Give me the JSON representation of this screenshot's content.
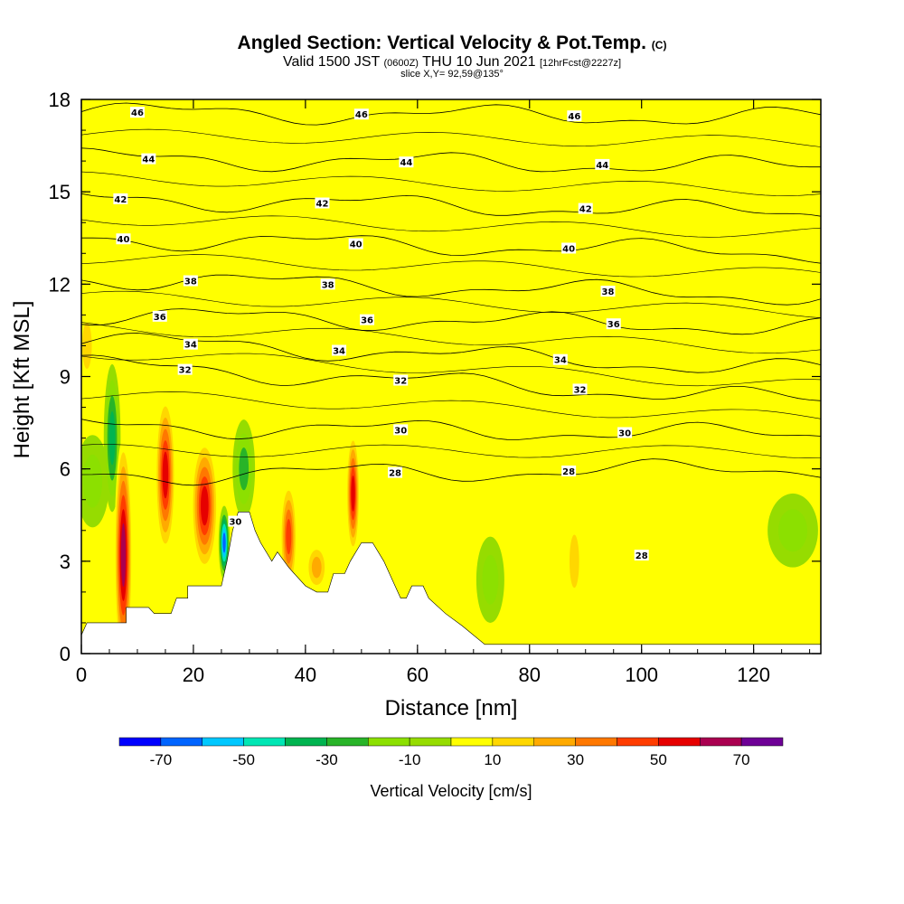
{
  "header": {
    "title_main": "Angled Section: Vertical Velocity & Pot.Temp.",
    "title_tag": "(C)",
    "valid_prefix": "Valid 1500 JST",
    "valid_z": "(0600Z)",
    "valid_date": "THU 10 Jun 2021",
    "valid_fcst": "[12hrFcst@2227z]",
    "slice": "slice X,Y= 92,59@135°"
  },
  "chart_data": {
    "type": "heatmap",
    "xlabel": "Distance [nm]",
    "ylabel": "Height [Kft MSL]",
    "xlim": [
      0,
      132
    ],
    "ylim": [
      0,
      18
    ],
    "xticks": [
      0,
      20,
      40,
      60,
      80,
      100,
      120
    ],
    "yticks": [
      0,
      3,
      6,
      9,
      12,
      15,
      18
    ],
    "colorbar": {
      "title": "Vertical Velocity [cm/s]",
      "tick_values": [
        -70,
        -50,
        -30,
        -10,
        10,
        30,
        50,
        70
      ],
      "levels": [
        -80,
        -70,
        -60,
        -50,
        -40,
        -30,
        -20,
        -10,
        0,
        10,
        20,
        30,
        40,
        50,
        60,
        70,
        80
      ],
      "colors": [
        "#0000ff",
        "#0064ff",
        "#00c8ff",
        "#00e6b4",
        "#00b450",
        "#28b428",
        "#8ce000",
        "#96dc00",
        "#ffff00",
        "#ffd700",
        "#ffaa00",
        "#ff7800",
        "#ff3c00",
        "#e60000",
        "#aa0050",
        "#6e0096"
      ]
    },
    "background_velocity": 0,
    "velocity_cells": [
      {
        "x": 7.5,
        "x_half_width": 1.6,
        "y": 3.2,
        "y_half_height": 3.8,
        "value": 70
      },
      {
        "x": 15,
        "x_half_width": 1.8,
        "y": 5.8,
        "y_half_height": 2.6,
        "value": 60
      },
      {
        "x": 22,
        "x_half_width": 2.4,
        "y": 4.8,
        "y_half_height": 2.2,
        "value": 60
      },
      {
        "x": 37,
        "x_half_width": 1.5,
        "y": 3.8,
        "y_half_height": 1.8,
        "value": 50
      },
      {
        "x": 48.5,
        "x_half_width": 1.2,
        "y": 5.2,
        "y_half_height": 2.0,
        "value": 60
      },
      {
        "x": 25.5,
        "x_half_width": 1.0,
        "y": 3.6,
        "y_half_height": 1.2,
        "value": -70
      },
      {
        "x": 29,
        "x_half_width": 2.0,
        "y": 6.0,
        "y_half_height": 1.6,
        "value": -30
      },
      {
        "x": 5.5,
        "x_half_width": 1.5,
        "y": 7.0,
        "y_half_height": 2.4,
        "value": -40
      },
      {
        "x": 2,
        "x_half_width": 3.0,
        "y": 5.6,
        "y_half_height": 1.5,
        "value": -20
      },
      {
        "x": 73,
        "x_half_width": 2.5,
        "y": 2.4,
        "y_half_height": 1.4,
        "value": -20
      },
      {
        "x": 127,
        "x_half_width": 4.5,
        "y": 4.0,
        "y_half_height": 1.2,
        "value": -20
      },
      {
        "x": 1,
        "x_half_width": 1.5,
        "y": 10.0,
        "y_half_height": 1.3,
        "value": 20
      },
      {
        "x": 5,
        "x_half_width": 3.5,
        "y": 14.5,
        "y_half_height": 2.2,
        "value": 10
      },
      {
        "x": 20,
        "x_half_width": 3.0,
        "y": 13.5,
        "y_half_height": 1.8,
        "value": 10
      },
      {
        "x": 29,
        "x_half_width": 2.0,
        "y": 15.5,
        "y_half_height": 2.5,
        "value": 10
      },
      {
        "x": 48,
        "x_half_width": 9.0,
        "y": 11.5,
        "y_half_height": 2.0,
        "value": 10
      },
      {
        "x": 66,
        "x_half_width": 4.0,
        "y": 9.5,
        "y_half_height": 1.5,
        "value": 10
      },
      {
        "x": 79,
        "x_half_width": 5.0,
        "y": 11.0,
        "y_half_height": 3.5,
        "value": 10
      },
      {
        "x": 86,
        "x_half_width": 2.5,
        "y": 16.5,
        "y_half_height": 1.5,
        "value": 10
      },
      {
        "x": 96,
        "x_half_width": 4.0,
        "y": 9.5,
        "y_half_height": 2.5,
        "value": 10
      },
      {
        "x": 107,
        "x_half_width": 3.0,
        "y": 15.0,
        "y_half_height": 3.0,
        "value": 10
      },
      {
        "x": 120,
        "x_half_width": 2.5,
        "y": 10.5,
        "y_half_height": 2.5,
        "value": 10
      },
      {
        "x": 128,
        "x_half_width": 3.0,
        "y": 9.5,
        "y_half_height": 2.0,
        "value": 10
      },
      {
        "x": 88,
        "x_half_width": 1.5,
        "y": 3.0,
        "y_half_height": 1.5,
        "value": 20
      },
      {
        "x": 97,
        "x_half_width": 1.5,
        "y": 2.6,
        "y_half_height": 1.4,
        "value": 15
      },
      {
        "x": 117,
        "x_half_width": 2.5,
        "y": 2.5,
        "y_half_height": 1.6,
        "value": 15
      },
      {
        "x": 57,
        "x_half_width": 2.0,
        "y": 3.5,
        "y_half_height": 1.0,
        "value": 10
      },
      {
        "x": 42,
        "x_half_width": 2.0,
        "y": 2.8,
        "y_half_height": 0.8,
        "value": 30
      }
    ],
    "terrain": [
      {
        "x": 0,
        "h": 0.6
      },
      {
        "x": 1,
        "h": 1.0
      },
      {
        "x": 8,
        "h": 1.0
      },
      {
        "x": 8,
        "h": 1.5
      },
      {
        "x": 12,
        "h": 1.5
      },
      {
        "x": 13,
        "h": 1.3
      },
      {
        "x": 16,
        "h": 1.3
      },
      {
        "x": 17,
        "h": 1.8
      },
      {
        "x": 19,
        "h": 1.8
      },
      {
        "x": 19,
        "h": 2.2
      },
      {
        "x": 25,
        "h": 2.2
      },
      {
        "x": 26,
        "h": 3.0
      },
      {
        "x": 27,
        "h": 4.0
      },
      {
        "x": 28,
        "h": 4.6
      },
      {
        "x": 30,
        "h": 4.6
      },
      {
        "x": 31,
        "h": 4.0
      },
      {
        "x": 32,
        "h": 3.6
      },
      {
        "x": 34,
        "h": 3.0
      },
      {
        "x": 35,
        "h": 3.3
      },
      {
        "x": 37,
        "h": 2.8
      },
      {
        "x": 38,
        "h": 2.6
      },
      {
        "x": 40,
        "h": 2.2
      },
      {
        "x": 42,
        "h": 2.0
      },
      {
        "x": 44,
        "h": 2.0
      },
      {
        "x": 45,
        "h": 2.6
      },
      {
        "x": 47,
        "h": 2.6
      },
      {
        "x": 48,
        "h": 3.0
      },
      {
        "x": 50,
        "h": 3.6
      },
      {
        "x": 52,
        "h": 3.6
      },
      {
        "x": 54,
        "h": 3.0
      },
      {
        "x": 56,
        "h": 2.2
      },
      {
        "x": 57,
        "h": 1.8
      },
      {
        "x": 58,
        "h": 1.8
      },
      {
        "x": 59,
        "h": 2.2
      },
      {
        "x": 61,
        "h": 2.2
      },
      {
        "x": 62,
        "h": 1.8
      },
      {
        "x": 65,
        "h": 1.3
      },
      {
        "x": 68,
        "h": 0.9
      },
      {
        "x": 72,
        "h": 0.3
      },
      {
        "x": 132,
        "h": 0.3
      }
    ],
    "theta_contours": [
      {
        "value": 46,
        "y_left": 17.6,
        "y_right": 17.4,
        "labels": [
          {
            "x": 10,
            "text": "46"
          },
          {
            "x": 50,
            "text": "46"
          },
          {
            "x": 88,
            "text": "46"
          }
        ]
      },
      {
        "value": 44,
        "y_left": 16.1,
        "y_right": 15.8,
        "labels": [
          {
            "x": 12,
            "text": "44"
          },
          {
            "x": 58,
            "text": "44"
          },
          {
            "x": 93,
            "text": "44"
          }
        ]
      },
      {
        "value": 42,
        "y_left": 14.8,
        "y_right": 14.3,
        "labels": [
          {
            "x": 7,
            "text": "42"
          },
          {
            "x": 43,
            "text": "42"
          },
          {
            "x": 90,
            "text": "42"
          }
        ]
      },
      {
        "value": 40,
        "y_left": 13.5,
        "y_right": 13.0,
        "labels": [
          {
            "x": 7.5,
            "text": "40"
          },
          {
            "x": 49,
            "text": "40"
          },
          {
            "x": 87,
            "text": "40"
          }
        ]
      },
      {
        "value": 38,
        "y_left": 12.2,
        "y_right": 11.6,
        "labels": [
          {
            "x": 19.5,
            "text": "38"
          },
          {
            "x": 44,
            "text": "38"
          },
          {
            "x": 94,
            "text": "38"
          }
        ]
      },
      {
        "value": 36,
        "y_left": 11.0,
        "y_right": 10.6,
        "labels": [
          {
            "x": 14,
            "text": "36"
          },
          {
            "x": 51,
            "text": "36"
          },
          {
            "x": 95,
            "text": "36"
          }
        ]
      },
      {
        "value": 34,
        "y_left": 10.2,
        "y_right": 9.2,
        "labels": [
          {
            "x": 19.5,
            "text": "34"
          },
          {
            "x": 46,
            "text": "34"
          },
          {
            "x": 85.5,
            "text": "34"
          }
        ]
      },
      {
        "value": 32,
        "y_left": 9.4,
        "y_right": 8.2,
        "labels": [
          {
            "x": 18.5,
            "text": "32"
          },
          {
            "x": 57,
            "text": "32"
          },
          {
            "x": 89,
            "text": "32"
          }
        ]
      },
      {
        "value": 30,
        "y_left": 7.4,
        "y_right": 7.1,
        "labels": [
          {
            "x": 57,
            "text": "30"
          },
          {
            "x": 97,
            "text": "30"
          }
        ]
      },
      {
        "value": 28,
        "y_left": 5.8,
        "y_right": 6.0,
        "labels": [
          {
            "x": 56,
            "text": "28"
          },
          {
            "x": 87,
            "text": "28"
          }
        ]
      }
    ],
    "low_level_labels": [
      {
        "x": 27.5,
        "y": 4.3,
        "text": "30"
      },
      {
        "x": 100,
        "y": 3.2,
        "text": "28"
      }
    ]
  }
}
